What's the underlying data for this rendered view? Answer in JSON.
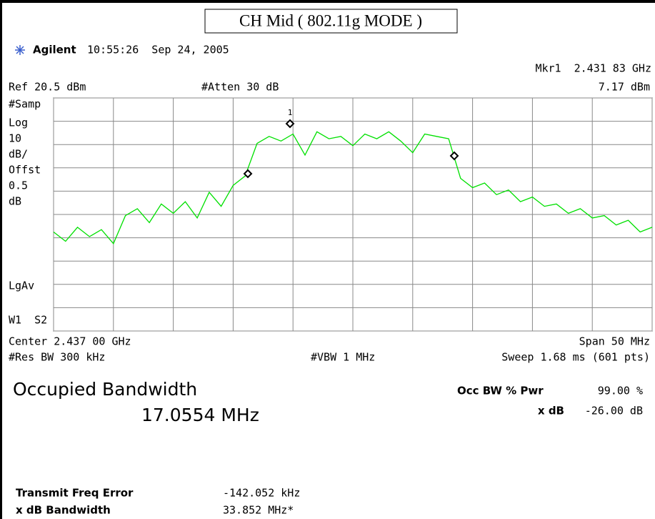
{
  "screen": {
    "title": "CH Mid ( 802.11g MODE )",
    "brand": "Agilent",
    "timestamp": "10:55:26  Sep 24, 2005",
    "marker": "Mkr1  2.431 83 GHz",
    "marker_level": "7.17 dBm",
    "ref": "Ref 20.5 dBm",
    "atten": "#Atten 30 dB",
    "side_labels": [
      "#Samp",
      "Log",
      "10",
      "dB/",
      "Offst",
      "0.5",
      "dB",
      "LgAv",
      "W1  S2"
    ],
    "center": "Center 2.437 00 GHz",
    "span": "Span 50 MHz",
    "res_bw": "#Res BW 300 kHz",
    "vbw": "#VBW 1 MHz",
    "sweep": "Sweep 1.68 ms (601 pts)",
    "occ_title": "Occupied Bandwidth",
    "occ_value": "17.0554 MHz",
    "occ_pwr_label": "Occ BW % Pwr",
    "occ_pwr_value": "99.00 %",
    "xdb_label": "x dB",
    "xdb_value": "-26.00 dB",
    "tfe_label": "Transmit Freq Error",
    "tfe_value": "-142.052 kHz",
    "xdbbw_label": "x dB Bandwidth",
    "xdbbw_value": "33.852 MHz*",
    "marker_number": "1"
  },
  "chart_data": {
    "type": "line",
    "color": "#00e000",
    "grid": true,
    "xlim": [
      2.412,
      2.462
    ],
    "ylim": [
      -79.5,
      20.5
    ],
    "xticks": [
      2.412,
      2.417,
      2.422,
      2.427,
      2.432,
      2.437,
      2.442,
      2.447,
      2.452,
      2.457,
      2.462
    ],
    "yticks": [
      20.5,
      10.5,
      0.5,
      -9.5,
      -19.5,
      -29.5,
      -39.5,
      -49.5,
      -59.5,
      -69.5,
      -79.5
    ],
    "x": [
      2.412,
      2.413,
      2.414,
      2.415,
      2.416,
      2.417,
      2.418,
      2.419,
      2.42,
      2.421,
      2.422,
      2.423,
      2.424,
      2.425,
      2.426,
      2.427,
      2.428,
      2.429,
      2.43,
      2.431,
      2.432,
      2.433,
      2.434,
      2.435,
      2.436,
      2.437,
      2.438,
      2.439,
      2.44,
      2.441,
      2.442,
      2.443,
      2.444,
      2.445,
      2.446,
      2.447,
      2.448,
      2.449,
      2.45,
      2.451,
      2.452,
      2.453,
      2.454,
      2.455,
      2.456,
      2.457,
      2.458,
      2.459,
      2.46,
      2.461,
      2.462
    ],
    "values": [
      -37,
      -41,
      -35,
      -39,
      -36,
      -42,
      -30,
      -27,
      -33,
      -25,
      -29,
      -24,
      -31,
      -20,
      -26,
      -17,
      -13,
      1,
      4,
      2,
      5,
      -4,
      6,
      3,
      4,
      0,
      5,
      3,
      6,
      2,
      -3,
      5,
      4,
      3,
      -14,
      -18,
      -16,
      -21,
      -19,
      -24,
      -22,
      -26,
      -25,
      -29,
      -27,
      -31,
      -30,
      -34,
      -32,
      -37,
      -35
    ]
  }
}
